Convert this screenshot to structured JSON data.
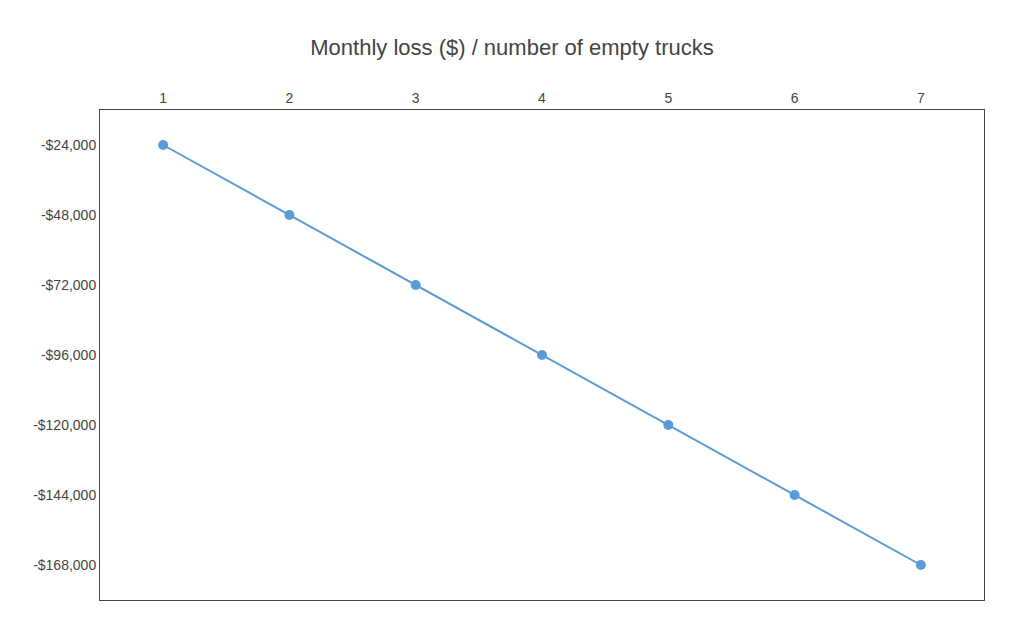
{
  "chart_data": {
    "type": "line",
    "title": "Monthly loss ($) / number of empty trucks",
    "x": [
      1,
      2,
      3,
      4,
      5,
      6,
      7
    ],
    "values": [
      -24000,
      -48000,
      -72000,
      -96000,
      -120000,
      -144000,
      -168000
    ],
    "color": "#5b9bd5",
    "marker": "circle",
    "xlim": [
      0.5,
      7.5
    ],
    "xticks": [
      1,
      2,
      3,
      4,
      5,
      6,
      7
    ],
    "ylim": [
      -180000,
      -12000
    ],
    "yticks": [
      {
        "value": -24000,
        "label": "-$24,000"
      },
      {
        "value": -48000,
        "label": "-$48,000"
      },
      {
        "value": -72000,
        "label": "-$72,000"
      },
      {
        "value": -96000,
        "label": "-$96,000"
      },
      {
        "value": -120000,
        "label": "-$120,000"
      },
      {
        "value": -144000,
        "label": "-$144,000"
      },
      {
        "value": -168000,
        "label": "-$168,000"
      }
    ],
    "grid": false
  }
}
